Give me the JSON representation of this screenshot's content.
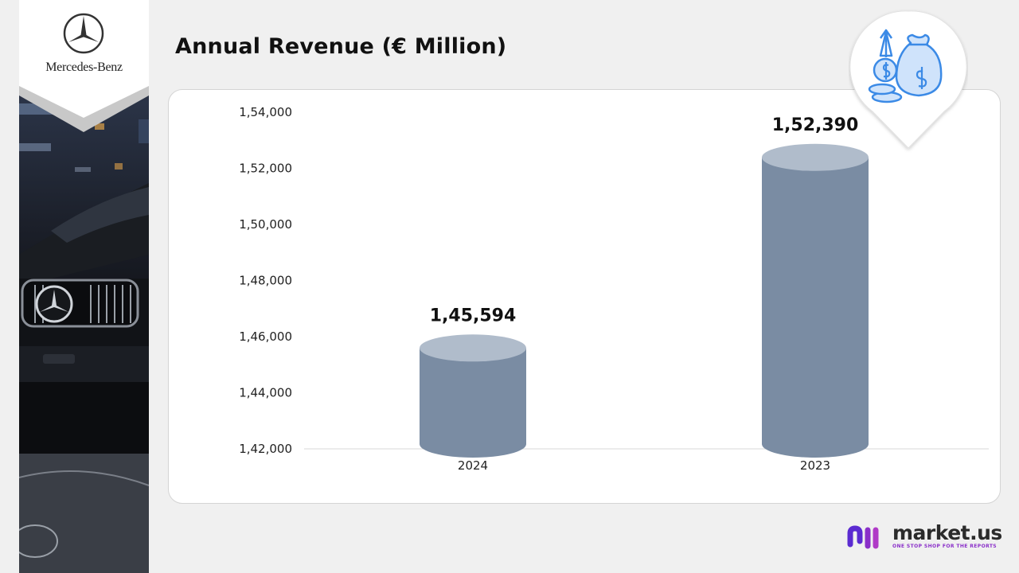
{
  "slide": {
    "title": "Annual Revenue (€ Million)",
    "brand": "Mercedes-Benz",
    "footer_brand": "market.us",
    "footer_tagline": "ONE STOP SHOP FOR THE REPORTS",
    "icon": "money-bag-growth-icon"
  },
  "colors": {
    "bar_body": "#7a8ca3",
    "bar_top": "#b0bccb",
    "footer_accent": "#8a2fc9"
  },
  "chart_data": {
    "type": "bar",
    "title": "Annual Revenue (€ Million)",
    "categories": [
      "2024",
      "2023"
    ],
    "values": [
      145594,
      152390
    ],
    "value_labels": [
      "1,45,594",
      "1,52,390"
    ],
    "ylim": [
      142000,
      154000
    ],
    "yticks": [
      142000,
      144000,
      146000,
      148000,
      150000,
      152000,
      154000
    ],
    "ytick_labels": [
      "1,42,000",
      "1,44,000",
      "1,46,000",
      "1,48,000",
      "1,50,000",
      "1,52,000",
      "1,54,000"
    ],
    "grid": false,
    "legend": "none"
  }
}
